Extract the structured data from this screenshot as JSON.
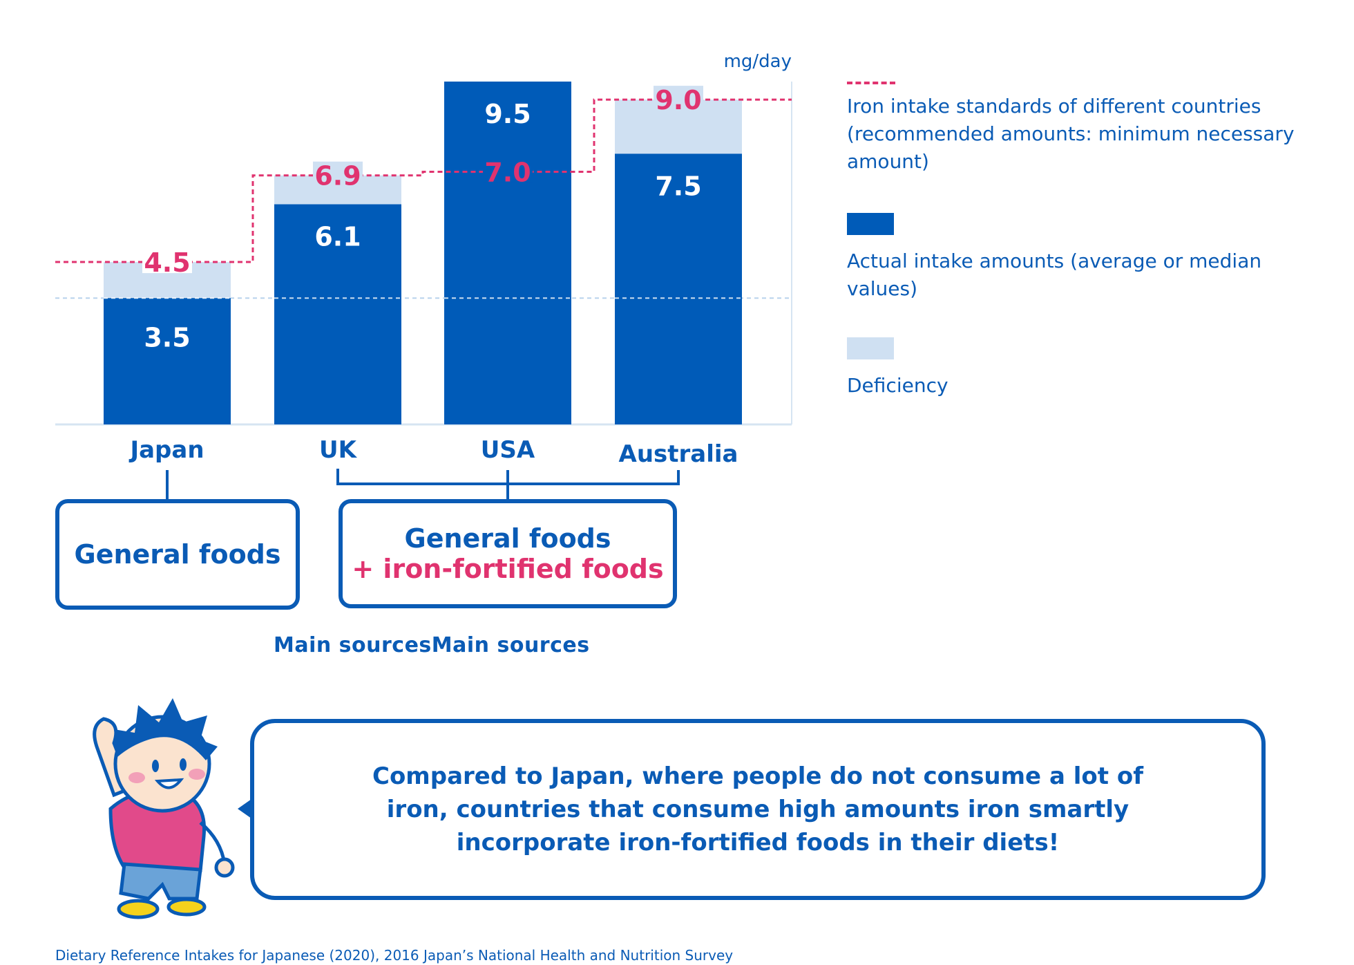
{
  "chart_data": {
    "type": "bar",
    "unit": "mg/day",
    "categories": [
      "Japan",
      "UK",
      "USA",
      "Australia"
    ],
    "actual": [
      3.5,
      6.1,
      9.5,
      7.5
    ],
    "actual_labels": [
      "3.5",
      "6.1",
      "9.5",
      "7.5"
    ],
    "standards": [
      4.5,
      6.9,
      7.0,
      9.0
    ],
    "standard_labels": [
      "4.5",
      "6.9",
      "7.0",
      "9.0"
    ],
    "ylim": [
      0,
      9.5
    ],
    "reference_line": 3.5
  },
  "legend": {
    "standard": "Iron intake standards of different countries (recommended amounts: minimum necessary amount)",
    "actual": "Actual intake amounts (average or median values)",
    "deficiency": "Deficiency"
  },
  "colors": {
    "actual": "#005bb8",
    "deficiency": "#cfe0f2",
    "standard": "#e0336f",
    "text": "#0a5bb5"
  },
  "boxes": {
    "general": "General foods",
    "fortified_line1": "General foods",
    "fortified_line2": "+ iron-fortified foods"
  },
  "main_sources": "Main sourcesMain sources",
  "bubble_text": "Compared to Japan, where people do not consume a lot of iron, countries that consume high amounts iron smartly incorporate iron-fortified foods in their diets!",
  "footnote": "Dietary Reference Intakes for Japanese (2020), 2016 Japan’s National Health and Nutrition Survey"
}
